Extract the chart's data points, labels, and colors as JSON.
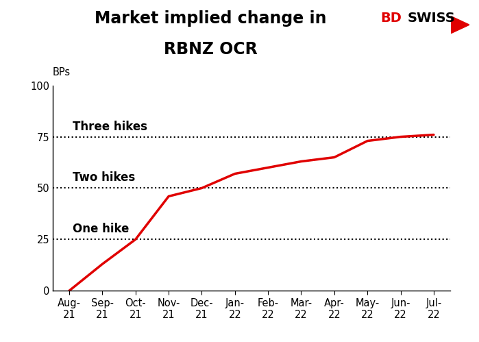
{
  "title_line1": "Market implied change in",
  "title_line2": "RBNZ OCR",
  "ylabel": "BPs",
  "x_labels": [
    "Aug-\n21",
    "Sep-\n21",
    "Oct-\n21",
    "Nov-\n21",
    "Dec-\n21",
    "Jan-\n22",
    "Feb-\n22",
    "Mar-\n22",
    "Apr-\n22",
    "May-\n22",
    "Jun-\n22",
    "Jul-\n22"
  ],
  "x_values": [
    0,
    1,
    2,
    3,
    4,
    5,
    6,
    7,
    8,
    9,
    10,
    11
  ],
  "y_values": [
    0,
    13,
    25,
    46,
    50,
    57,
    60,
    63,
    65,
    73,
    75,
    76
  ],
  "line_color": "#e00000",
  "line_width": 2.5,
  "dotted_lines": [
    25,
    50,
    75
  ],
  "dotted_color": "#000000",
  "annotations": [
    {
      "text": "Three hikes",
      "x_data": 0.1,
      "y": 77,
      "fontsize": 12
    },
    {
      "text": "Two hikes",
      "x_data": 0.1,
      "y": 52,
      "fontsize": 12
    },
    {
      "text": "One hike",
      "x_data": 0.1,
      "y": 27,
      "fontsize": 12
    }
  ],
  "ylim": [
    0,
    100
  ],
  "yticks": [
    0,
    25,
    50,
    75,
    100
  ],
  "background_color": "#ffffff",
  "title_fontsize": 17,
  "axis_fontsize": 10.5,
  "bd_color": "#e00000",
  "swiss_color": "#000000",
  "logo_fontsize": 14
}
